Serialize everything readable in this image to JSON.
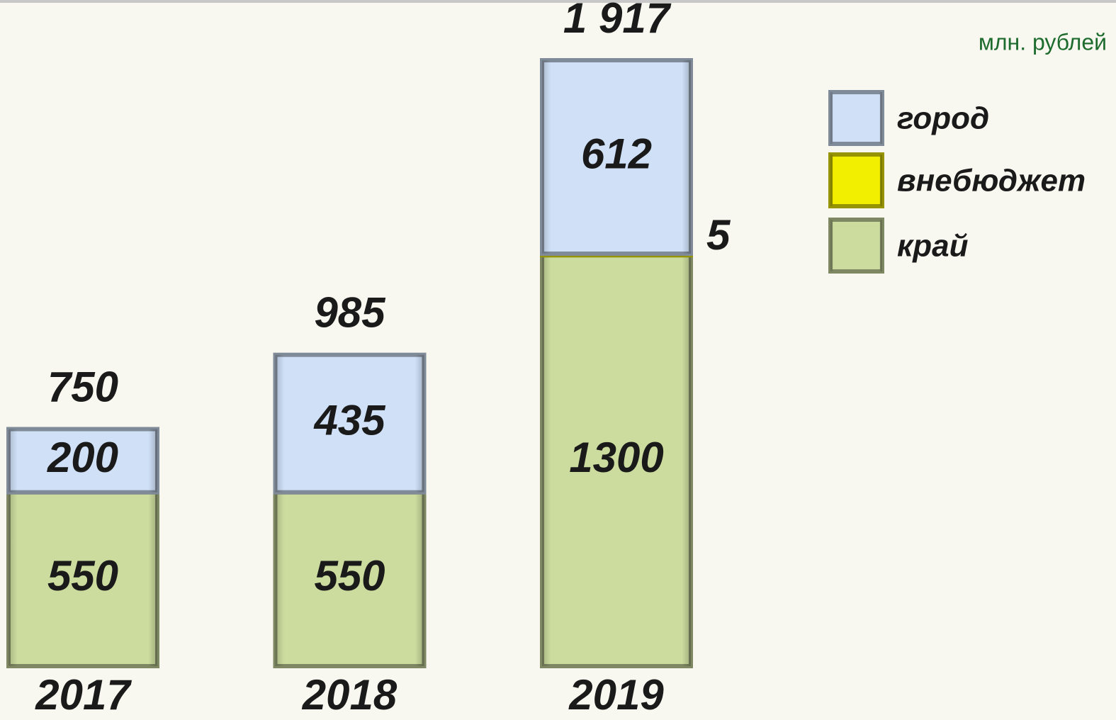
{
  "chart_data": {
    "type": "stacked-bar",
    "unit_label": "млн. рублей",
    "categories": [
      "2017",
      "2018",
      "2019"
    ],
    "series": [
      {
        "name": "край",
        "color": "#ccdc9e",
        "values": [
          550,
          550,
          1300
        ]
      },
      {
        "name": "внебюджет",
        "color": "#f2ef00",
        "values": [
          null,
          null,
          5
        ]
      },
      {
        "name": "город",
        "color": "#cfe0f7",
        "values": [
          200,
          435,
          612
        ]
      }
    ],
    "totals": {
      "values": [
        750,
        985,
        1917
      ],
      "value_labels": [
        "750",
        "985",
        "1 917"
      ]
    }
  }
}
